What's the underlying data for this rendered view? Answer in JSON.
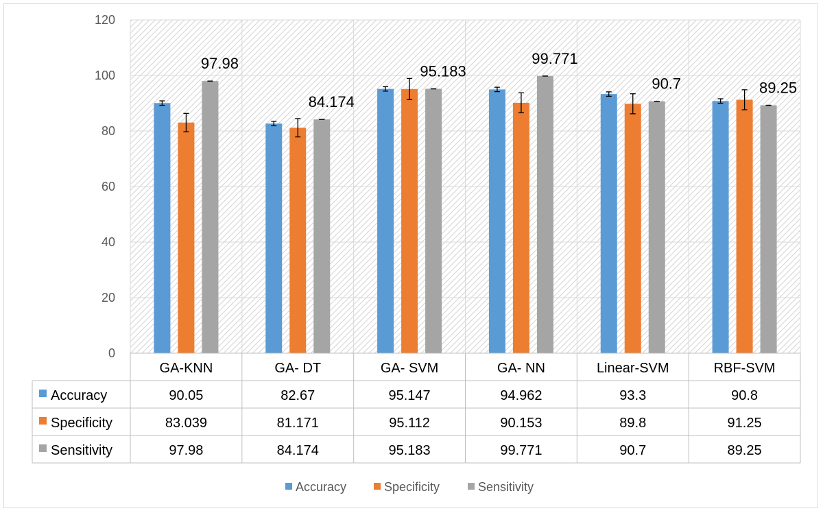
{
  "colors": {
    "Accuracy": "#5b9bd5",
    "Specificity": "#ed7d31",
    "Sensitivity": "#a5a5a5"
  },
  "chart_data": {
    "type": "bar",
    "categories": [
      "GA-KNN",
      "GA- DT",
      "GA- SVM",
      "GA- NN",
      "Linear-SVM",
      "RBF-SVM"
    ],
    "series": [
      {
        "name": "Accuracy",
        "values": [
          90.05,
          82.67,
          95.147,
          94.962,
          93.3,
          90.8
        ],
        "error": [
          0.8,
          0.8,
          0.8,
          0.8,
          0.8,
          0.8
        ]
      },
      {
        "name": "Specificity",
        "values": [
          83.039,
          81.171,
          95.112,
          90.153,
          89.8,
          91.25
        ],
        "error": [
          3.3,
          3.3,
          3.8,
          3.6,
          3.6,
          3.6
        ]
      },
      {
        "name": "Sensitivity",
        "values": [
          97.98,
          84.174,
          95.183,
          99.771,
          90.7,
          89.25
        ],
        "error": [
          0,
          0,
          0,
          0,
          0,
          0
        ]
      }
    ],
    "data_labels": {
      "series": "Sensitivity",
      "values": [
        "97.98",
        "84.174",
        "95.183",
        "99.771",
        "90.7",
        "89.25"
      ]
    },
    "table": {
      "rows": [
        {
          "name": "Accuracy",
          "cells": [
            "90.05",
            "82.67",
            "95.147",
            "94.962",
            "93.3",
            "90.8"
          ]
        },
        {
          "name": "Specificity",
          "cells": [
            "83.039",
            "81.171",
            "95.112",
            "90.153",
            "89.8",
            "91.25"
          ]
        },
        {
          "name": "Sensitivity",
          "cells": [
            "97.98",
            "84.174",
            "95.183",
            "99.771",
            "90.7",
            "89.25"
          ]
        }
      ]
    },
    "ylim": [
      0,
      120
    ],
    "yticks": [
      "0",
      "20",
      "40",
      "60",
      "80",
      "100",
      "120"
    ],
    "grid": true,
    "legend": [
      "Accuracy",
      "Specificity",
      "Sensitivity"
    ],
    "legend_position": "bottom"
  }
}
